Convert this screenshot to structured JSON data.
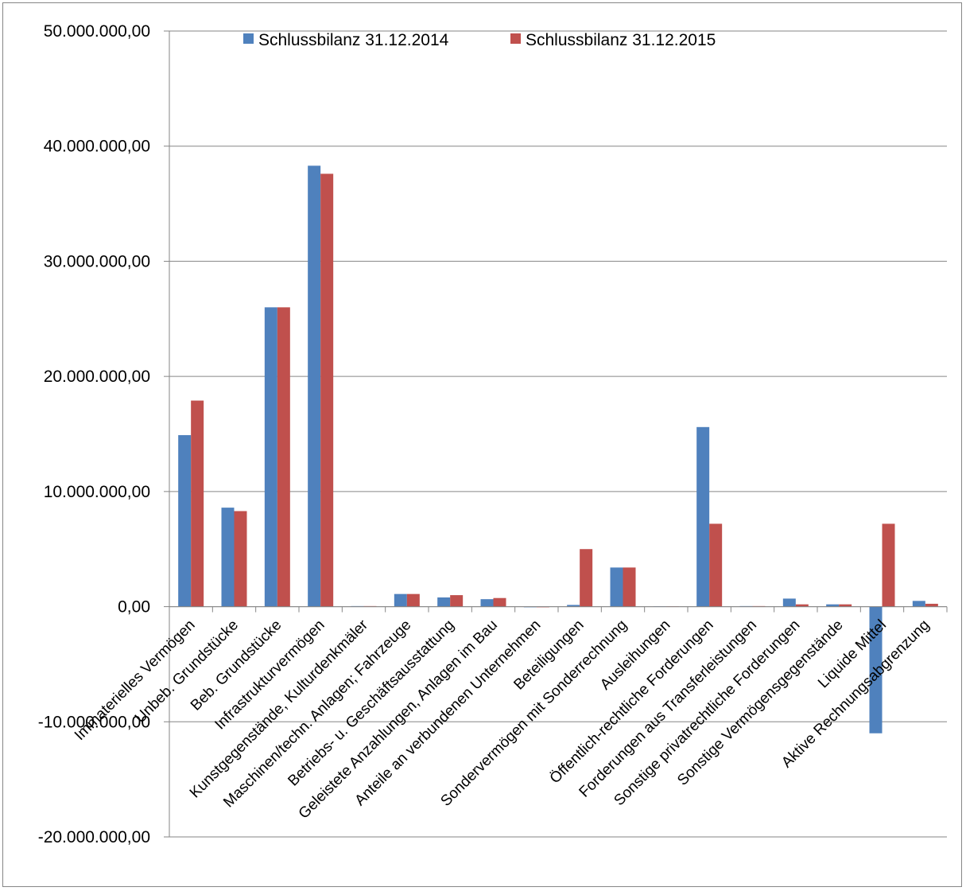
{
  "chart_data": {
    "type": "bar",
    "title": "",
    "xlabel": "",
    "ylabel": "",
    "ylim": [
      -20000000,
      50000000
    ],
    "y_tick_step": 10000000,
    "y_tick_labels": [
      "50.000.000,00",
      "40.000.000,00",
      "30.000.000,00",
      "20.000.000,00",
      "10.000.000,00",
      "0,00",
      "-10.000.000,00",
      "-20.000.000,00"
    ],
    "grid": "horizontal",
    "legend_position": "top",
    "categories": [
      "Immaterielles Vermögen",
      "Unbeb. Grundstücke",
      "Beb. Grundstücke",
      "Infrastrukturvermögen",
      "Kunstgegenstände, Kulturdenkmäler",
      "Maschinen/techn. Anlagen; Fahrzeuge",
      "Betriebs- u. Geschäftsausstattung",
      "Geleistete Anzahlungen, Anlagen im Bau",
      "Anteile an verbundenen Unternehmen",
      "Beteiligungen",
      "Sondervermögen mit Sonderrechnung",
      "Ausleihungen",
      "Öffentlich-rechtliche Forderungen",
      "Forderungen aus Transferleistungen",
      "Sonstige privatrechtliche Forderungen",
      "Sonstige Vermögensgegenstände",
      "Liquide Mittel",
      "Aktive Rechnungsabgrenzung"
    ],
    "series": [
      {
        "name": "Schlussbilanz 31.12.2014",
        "color": "#4f81bd",
        "values": [
          14900000,
          8600000,
          26000000,
          38300000,
          50000,
          1100000,
          800000,
          650000,
          0,
          150000,
          3400000,
          30000,
          15600000,
          50000,
          700000,
          200000,
          -11000000,
          500000
        ]
      },
      {
        "name": "Schlussbilanz 31.12.2015",
        "color": "#c0504d",
        "values": [
          17900000,
          8300000,
          26000000,
          37600000,
          50000,
          1100000,
          1000000,
          750000,
          0,
          5000000,
          3400000,
          30000,
          7200000,
          50000,
          200000,
          200000,
          7200000,
          250000
        ]
      }
    ]
  }
}
